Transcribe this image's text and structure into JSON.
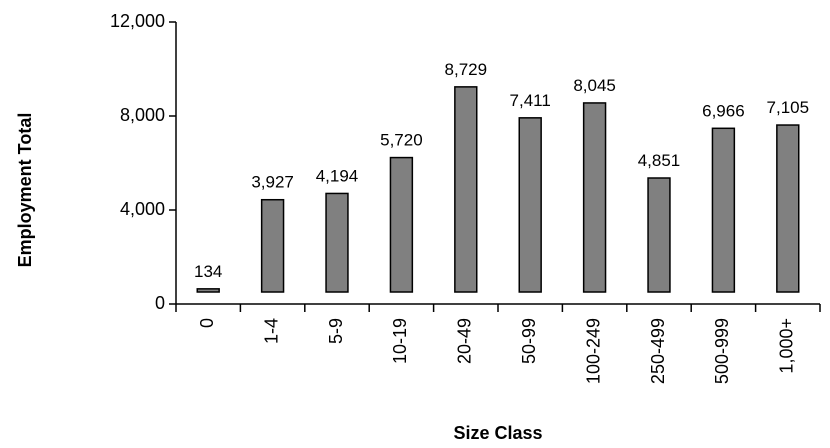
{
  "chart_data": {
    "type": "bar",
    "title": "",
    "xlabel": "Size Class",
    "ylabel": "Employment Total",
    "categories": [
      "0",
      "1-4",
      "5-9",
      "10-19",
      "20-49",
      "50-99",
      "100-249",
      "250-499",
      "500-999",
      "1,000+"
    ],
    "values": [
      134,
      3927,
      4194,
      5720,
      8729,
      7411,
      8045,
      4851,
      6966,
      7105
    ],
    "data_labels": [
      "134",
      "3,927",
      "4,194",
      "5,720",
      "8,729",
      "7,411",
      "8,045",
      "4,851",
      "6,966",
      "7,105"
    ],
    "ylim": [
      0,
      12000
    ],
    "yticks": [
      0,
      4000,
      8000,
      12000
    ],
    "ytick_labels": [
      "0",
      "4,000",
      "8,000",
      "12,000"
    ],
    "grid": false,
    "legend": "none",
    "colors": {
      "bar_fill": "#808080",
      "bar_stroke": "#000000",
      "axis": "#000000"
    }
  }
}
